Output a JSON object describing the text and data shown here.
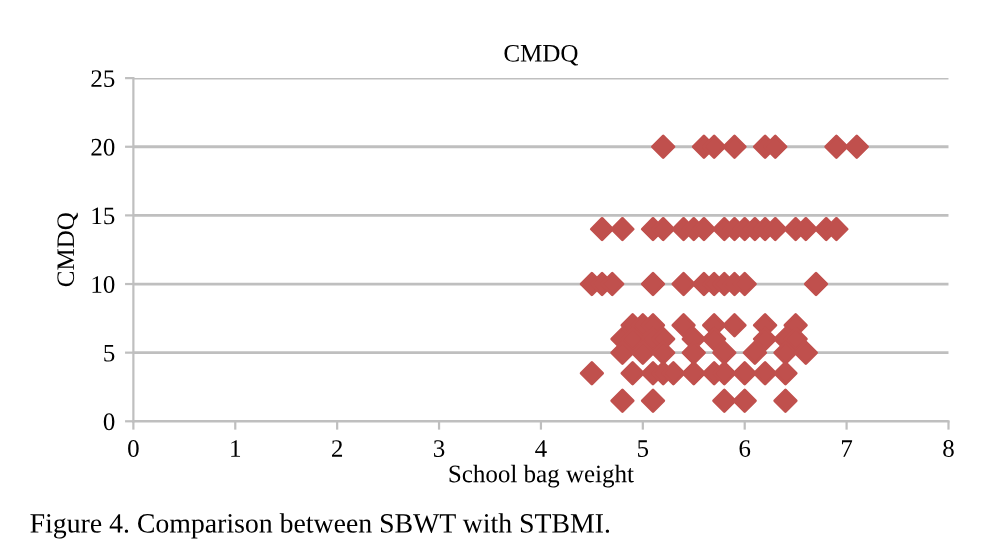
{
  "chart_data": {
    "type": "scatter",
    "title": "CMDQ",
    "xlabel": "School bag weight",
    "ylabel": "CMDQ",
    "series": [
      {
        "color": "#c0504d",
        "x": [
          5.2,
          5.6,
          5.7,
          5.9,
          6.2,
          6.3,
          6.9,
          7.1,
          4.6,
          4.8,
          5.1,
          5.2,
          5.4,
          5.5,
          5.6,
          5.8,
          5.9,
          6.0,
          6.1,
          6.2,
          6.3,
          6.5,
          6.6,
          6.8,
          6.9,
          4.5,
          4.6,
          4.7,
          5.1,
          5.4,
          5.6,
          5.7,
          5.8,
          5.9,
          6.0,
          6.7,
          4.9,
          5.0,
          5.1,
          5.4,
          5.7,
          5.9,
          6.2,
          6.5,
          4.8,
          4.9,
          5.1,
          5.2,
          5.5,
          5.7,
          6.2,
          6.4,
          6.5,
          4.8,
          5.0,
          5.2,
          5.5,
          5.8,
          6.1,
          6.4,
          6.6,
          4.5,
          4.9,
          5.1,
          5.2,
          5.3,
          5.5,
          5.7,
          5.8,
          6.0,
          6.2,
          6.4,
          4.8,
          5.1,
          5.8,
          6.0,
          6.4
        ],
        "values": [
          20,
          20,
          20,
          20,
          20,
          20,
          20,
          20,
          14,
          14,
          14,
          14,
          14,
          14,
          14,
          14,
          14,
          14,
          14,
          14,
          14,
          14,
          14,
          14,
          14,
          10,
          10,
          10,
          10,
          10,
          10,
          10,
          10,
          10,
          10,
          10,
          7,
          7,
          7,
          7,
          7,
          7,
          7,
          7,
          6,
          6,
          6,
          6,
          6,
          6,
          6,
          6,
          6,
          5,
          5,
          5,
          5,
          5,
          5,
          5,
          5,
          3.5,
          3.5,
          3.5,
          3.5,
          3.5,
          3.5,
          3.5,
          3.5,
          3.5,
          3.5,
          3.5,
          1.5,
          1.5,
          1.5,
          1.5,
          1.5
        ]
      }
    ],
    "marker": "diamond",
    "grid": "y",
    "legend": false,
    "xlim": [
      0,
      8
    ],
    "xticks": [
      0,
      1,
      2,
      3,
      4,
      5,
      6,
      7,
      8
    ],
    "ylim": [
      0,
      25
    ],
    "yticks": [
      0,
      5,
      10,
      15,
      20,
      25
    ],
    "annotations": [
      "Figure 4. Comparison between SBWT with STBMI."
    ]
  }
}
